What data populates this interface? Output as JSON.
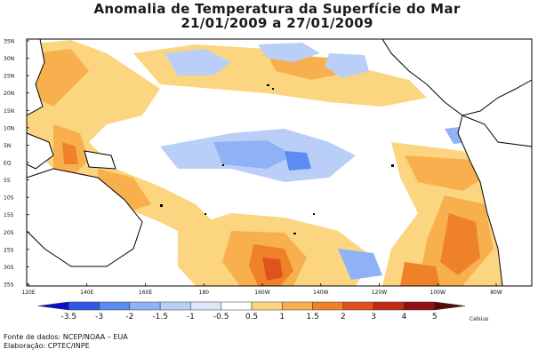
{
  "title_line1": "Anomalia de Temperatura da Superfície do Mar",
  "title_line2": "21/01/2009 a 27/01/2009",
  "lat_labels": [
    "35N",
    "30N",
    "25N",
    "20N",
    "15N",
    "10N",
    "5N",
    "EQ",
    "5S",
    "10S",
    "15S",
    "20S",
    "25S",
    "30S",
    "35S"
  ],
  "lon_labels": [
    "120E",
    "140E",
    "160E",
    "180",
    "160W",
    "140W",
    "120W",
    "100W",
    "80W"
  ],
  "colorbar": {
    "labels": [
      "-3.5",
      "-3",
      "-2",
      "-1.5",
      "-1",
      "-0.5",
      "0.5",
      "1",
      "1.5",
      "2",
      "3",
      "4",
      "5"
    ],
    "colors": [
      "#0a0fd0",
      "#2f56e6",
      "#5a8cf2",
      "#8fb2f6",
      "#b9cff8",
      "#dde8fb",
      "#ffffff",
      "#fcd580",
      "#f8b04e",
      "#ef8228",
      "#e0521c",
      "#c42a16",
      "#8e1010",
      "#5c0707"
    ],
    "units": "Celsius"
  },
  "credit_line1": "Fonte de dados: NCEP/NOAA – EUA",
  "credit_line2": "Elaboração: CPTEC/INPE",
  "colors": {
    "land": "#ffffff",
    "coast": "#000000",
    "warm1": "#fcd580",
    "warm2": "#f8b04e",
    "warm3": "#ef8228",
    "warm4": "#e0521c",
    "warm5": "#c42a16",
    "cool1": "#b9cff8",
    "cool2": "#8fb2f6",
    "cool3": "#5a8cf2",
    "cool4": "#2f56e6"
  }
}
